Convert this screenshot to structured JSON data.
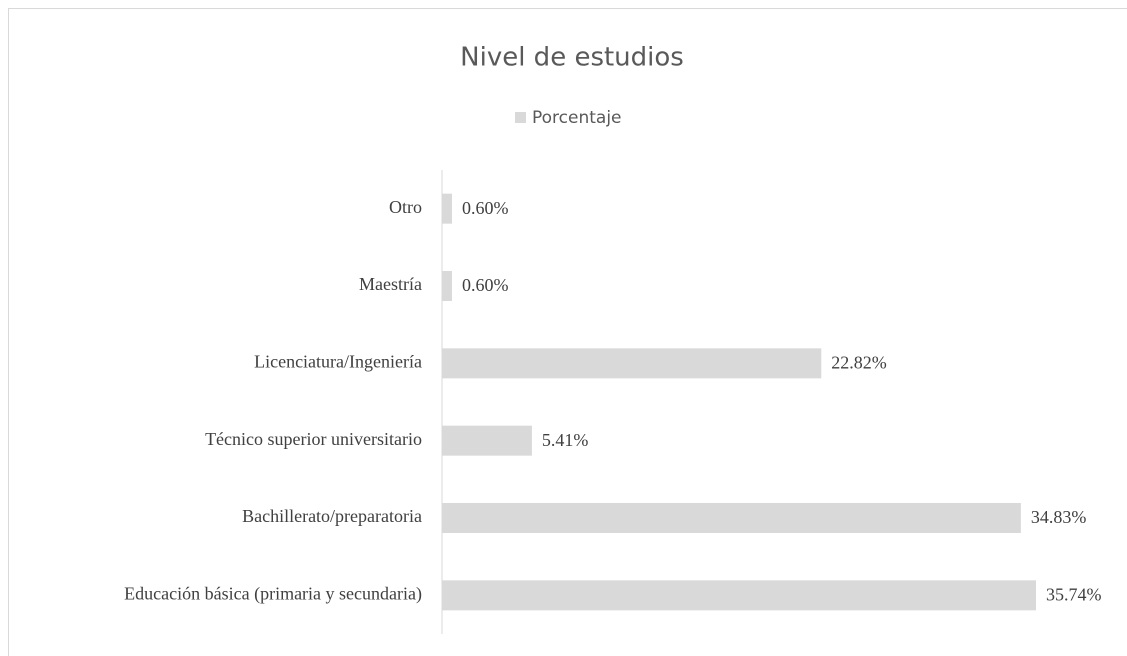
{
  "chart_data": {
    "type": "barh",
    "title": "Nivel de estudios",
    "categories": [
      "Educación básica (primaria y secundaria)",
      "Bachillerato/preparatoria",
      "Técnico superior universitario",
      "Licenciatura/Ingeniería",
      "Maestría",
      "Otro"
    ],
    "series": [
      {
        "name": "Porcentaje",
        "color": "#d9d9d9",
        "values": [
          35.74,
          34.83,
          5.41,
          22.82,
          0.6,
          0.6
        ],
        "value_labels": [
          "35.74%",
          "34.83%",
          "5.41%",
          "22.82%",
          "0.60%",
          "0.60%"
        ]
      }
    ],
    "legend": "top"
  }
}
